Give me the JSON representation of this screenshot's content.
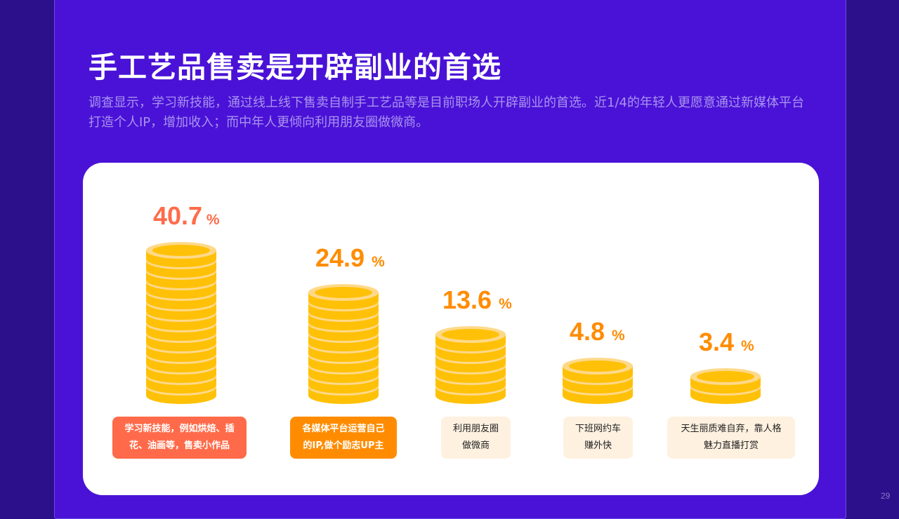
{
  "title": "手工艺品售卖是开辟副业的首选",
  "subtitle": "调查显示，学习新技能，通过线上线下售卖自制手工艺品等是目前职场人开辟副业的首选。近1/4的年轻人更愿意通过新媒体平台打造个人IP，增加收入；而中年人更倾向利用朋友圈做微商。",
  "page_number": "29",
  "colors": {
    "background": "#2c0f8a",
    "slide": "#4a12d6",
    "coin_face": "#ffc107",
    "coin_rim": "#ffd98a",
    "label_red": "#ff6b4a",
    "label_orange": "#ff8c00",
    "label_soft": "#fff1e0"
  },
  "chart_data": {
    "type": "bar",
    "categories": [
      "学习新技能，例如烘焙、插花、油画等，售卖小作品",
      "各媒体平台运营自己的IP,做个励志UP主",
      "利用朋友圈做微商",
      "下班网约车赚外快",
      "天生丽质难自弃，靠人格魅力直播打赏"
    ],
    "values": [
      40.7,
      24.9,
      13.6,
      4.8,
      3.4
    ],
    "unit": "%",
    "items": [
      {
        "value_text": "40.7",
        "unit": "%",
        "label_lines": [
          "学习新技能，例如烘焙、插",
          "花、油画等，售卖小作品"
        ],
        "coins": 14,
        "color": "#ff6b4a",
        "label_style": "strong"
      },
      {
        "value_text": "24.9 ",
        "unit": "%",
        "label_lines": [
          "各媒体平台运营自己",
          "的IP,做个励志UP主"
        ],
        "coins": 10,
        "color": "#ff8c00",
        "label_style": "strong"
      },
      {
        "value_text": "13.6 ",
        "unit": "%",
        "label_lines": [
          "利用朋友圈",
          "做微商"
        ],
        "coins": 6,
        "color": "#ff8c00",
        "label_style": "soft"
      },
      {
        "value_text": "4.8 ",
        "unit": "%",
        "label_lines": [
          "下班网约车",
          "赚外快"
        ],
        "coins": 3,
        "color": "#ff8c00",
        "label_style": "soft"
      },
      {
        "value_text": "3.4 ",
        "unit": "%",
        "label_lines": [
          "天生丽质难自弃，靠人格",
          "魅力直播打赏"
        ],
        "coins": 2,
        "color": "#ff8c00",
        "label_style": "soft"
      }
    ]
  }
}
